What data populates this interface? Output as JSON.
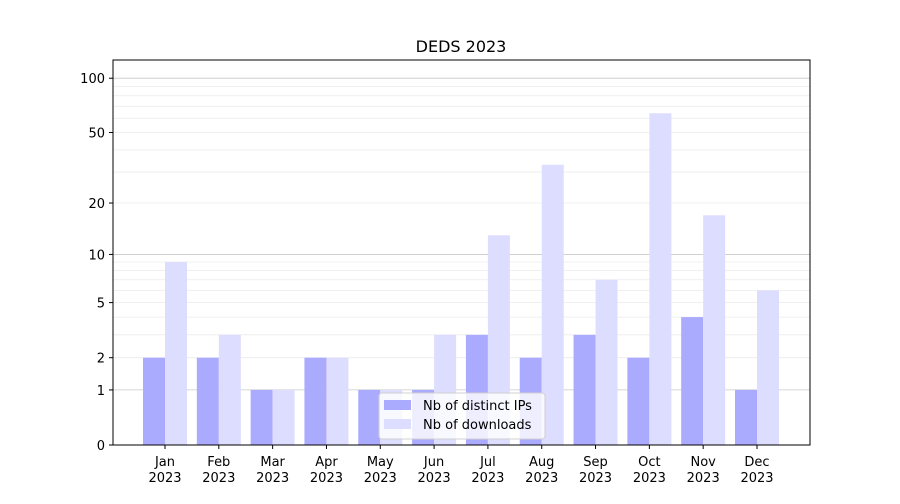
{
  "chart_data": {
    "type": "bar",
    "title": "DEDS 2023",
    "xlabel": "",
    "ylabel": "",
    "yscale": "symlog (log10(1+y))",
    "ylim": [
      0,
      120
    ],
    "yticks": [
      0,
      1,
      2,
      5,
      10,
      20,
      50,
      100
    ],
    "grid": true,
    "legend_position": "lower-center",
    "categories": [
      [
        "Jan",
        "2023"
      ],
      [
        "Feb",
        "2023"
      ],
      [
        "Mar",
        "2023"
      ],
      [
        "Apr",
        "2023"
      ],
      [
        "May",
        "2023"
      ],
      [
        "Jun",
        "2023"
      ],
      [
        "Jul",
        "2023"
      ],
      [
        "Aug",
        "2023"
      ],
      [
        "Sep",
        "2023"
      ],
      [
        "Oct",
        "2023"
      ],
      [
        "Nov",
        "2023"
      ],
      [
        "Dec",
        "2023"
      ]
    ],
    "series": [
      {
        "name": "Nb of distinct IPs",
        "color": "#aaaaff",
        "values": [
          2,
          2,
          1,
          2,
          1,
          1,
          3,
          2,
          3,
          2,
          4,
          1
        ]
      },
      {
        "name": "Nb of downloads",
        "color": "#ddddff",
        "values": [
          9,
          3,
          1,
          2,
          1,
          3,
          13,
          33,
          7,
          64,
          17,
          6
        ]
      }
    ]
  }
}
